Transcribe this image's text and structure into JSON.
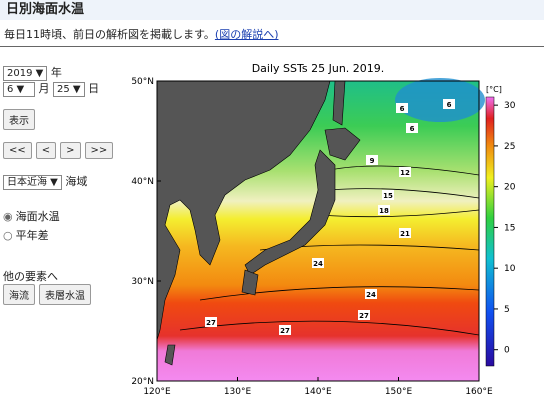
{
  "header": {
    "title": "日別海面水温"
  },
  "notice": {
    "text": "毎日11時頃、前日の解析図を掲載します。",
    "link": "(図の解説へ)"
  },
  "controls": {
    "year": "2019",
    "year_unit": "年",
    "month": "6",
    "month_unit": "月",
    "day": "25",
    "day_unit": "日",
    "show_button": "表示",
    "nav": [
      "<<",
      "<",
      ">",
      ">>"
    ],
    "region": "日本近海",
    "region_unit": "海域",
    "radios": [
      {
        "label": "海面水温",
        "checked": true
      },
      {
        "label": "平年差",
        "checked": false
      }
    ]
  },
  "other": {
    "label": "他の要素へ",
    "buttons": [
      "海流",
      "表層水温"
    ]
  },
  "map": {
    "title": "Daily SSTs 25 Jun. 2019.",
    "xlim": [
      120,
      160
    ],
    "xticks": [
      {
        "value": 120,
        "label": "120°E"
      },
      {
        "value": 130,
        "label": "130°E"
      },
      {
        "value": 140,
        "label": "140°E"
      },
      {
        "value": 150,
        "label": "150°E"
      },
      {
        "value": 160,
        "label": "160°E"
      }
    ],
    "ylim": [
      20,
      50
    ],
    "yticks": [
      {
        "value": 20,
        "label": "20°N"
      },
      {
        "value": 30,
        "label": "30°N"
      },
      {
        "value": 40,
        "label": "40°N"
      },
      {
        "value": 50,
        "label": "50°N"
      }
    ],
    "colorbar": {
      "unit": "[°C]",
      "lim": [
        -2,
        31
      ],
      "ticks": [
        0,
        5,
        10,
        15,
        20,
        25,
        30
      ]
    },
    "contour_labels": [
      "6",
      "6",
      "6",
      "9",
      "12",
      "15",
      "18",
      "21",
      "24",
      "24",
      "27",
      "27",
      "27"
    ]
  }
}
